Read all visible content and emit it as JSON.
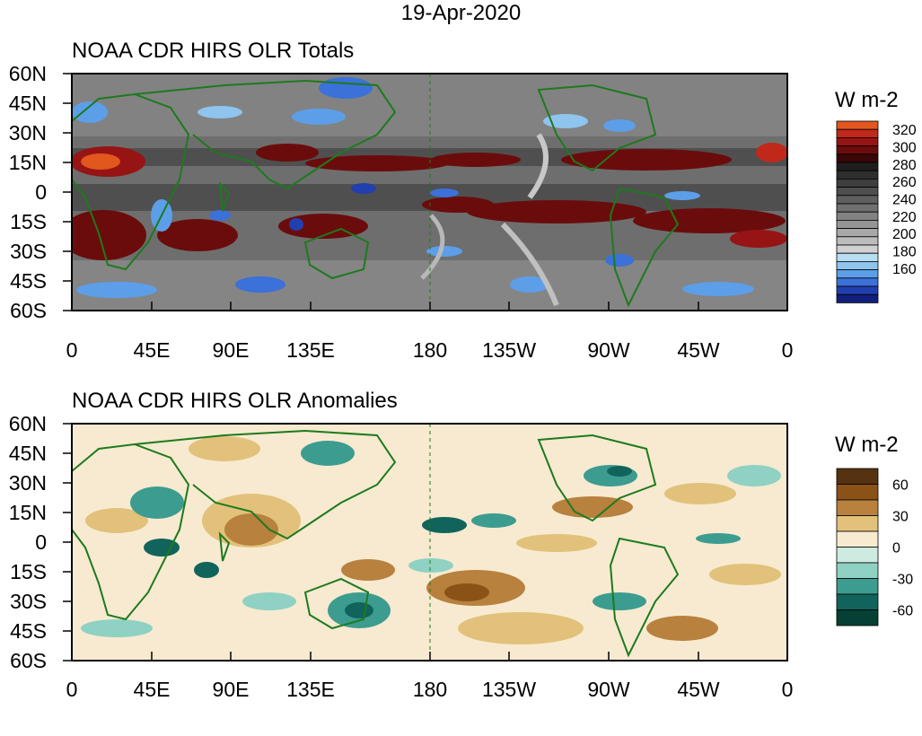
{
  "page": {
    "title": "19-Apr-2020"
  },
  "x_ticks": [
    "0",
    "45E",
    "90E",
    "135E",
    "180",
    "135W",
    "90W",
    "45W",
    "0"
  ],
  "y_ticks": [
    "60N",
    "45N",
    "30N",
    "15N",
    "0",
    "15S",
    "30S",
    "45S",
    "60S"
  ],
  "panels": [
    {
      "title": "NOAA CDR HIRS OLR Totals",
      "units": "W m-2",
      "colorbar_labels": [
        "320",
        "300",
        "280",
        "260",
        "240",
        "220",
        "200",
        "180",
        "160"
      ],
      "colorbar_colors": [
        "#e2571e",
        "#c0291a",
        "#961414",
        "#6b0c0c",
        "#3a0606",
        "#1e1e1e",
        "#2e2e2e",
        "#3e3e3e",
        "#4e4e4e",
        "#5f5f5f",
        "#707070",
        "#828282",
        "#959595",
        "#a8a8a8",
        "#bcbcbc",
        "#d0d0d0",
        "#b8def2",
        "#8ec4ee",
        "#5d9ee9",
        "#3b71d8",
        "#213fae",
        "#12207c"
      ]
    },
    {
      "title": "NOAA CDR HIRS OLR Anomalies",
      "units": "W m-2",
      "colorbar_labels": [
        "60",
        "30",
        "0",
        "-30",
        "-60"
      ],
      "colorbar_colors": [
        "#553210",
        "#8b5218",
        "#b8813e",
        "#e2c17b",
        "#f7ead0",
        "#cdebe1",
        "#8fd1c3",
        "#3d9c90",
        "#11645c",
        "#063f33"
      ]
    }
  ]
}
